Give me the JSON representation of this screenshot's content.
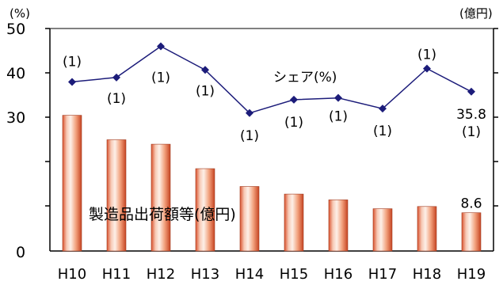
{
  "chart_data": {
    "type": "bar+line",
    "categories": [
      "H10",
      "H11",
      "H12",
      "H13",
      "H14",
      "H15",
      "H16",
      "H17",
      "H18",
      "H19"
    ],
    "left_axis": {
      "unit": "(%)",
      "ticks": [
        "0",
        "30",
        "40",
        "50"
      ]
    },
    "right_axis": {
      "unit": "(億円)"
    },
    "series": [
      {
        "name": "シェア(%)",
        "type": "line",
        "axis": "left",
        "color": "#1c1c7a",
        "values": [
          38.0,
          39.0,
          46.0,
          40.7,
          31.0,
          34.0,
          34.4,
          32.0,
          41.0,
          35.8
        ],
        "point_labels": [
          "(1)",
          "(1)",
          "(1)",
          "(1)",
          "(1)",
          "(1)",
          "(1)",
          "(1)",
          "(1)",
          "(1)"
        ],
        "value_labels": [
          "",
          "",
          "",
          "",
          "",
          "",
          "",
          "",
          "",
          "35.8"
        ]
      },
      {
        "name": "製造品出荷額等(億円)",
        "type": "bar",
        "axis": "right",
        "color": "#e8735a",
        "values": [
          30.5,
          25.0,
          24.0,
          18.5,
          14.5,
          12.8,
          11.5,
          9.5,
          10.0,
          8.6
        ],
        "value_labels": [
          "",
          "",
          "",
          "",
          "",
          "",
          "",
          "",
          "",
          "8.6"
        ]
      }
    ],
    "left_axis_range": [
      0,
      50
    ],
    "grid": false,
    "legend": "inline"
  }
}
